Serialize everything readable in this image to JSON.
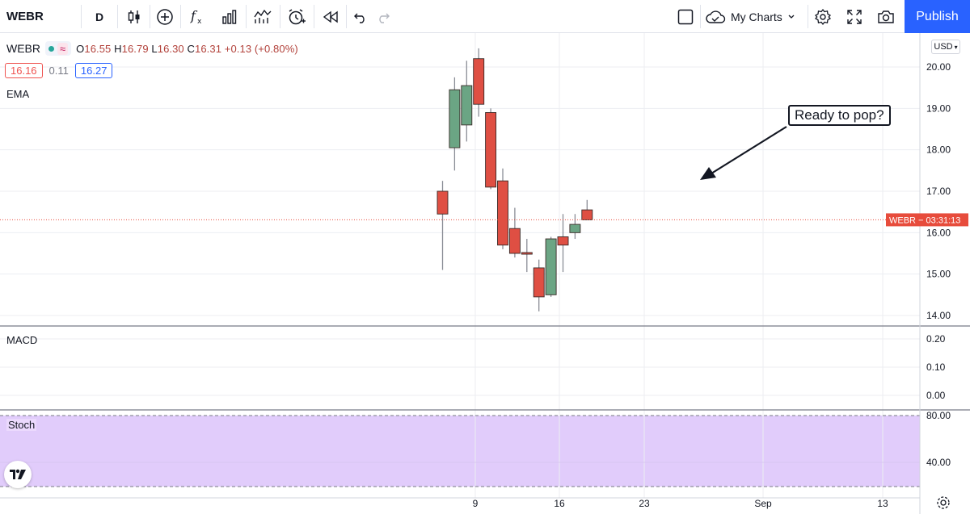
{
  "toolbar": {
    "symbol": "WEBR",
    "interval": "D",
    "icons": [
      "candles-icon",
      "add-symbol-icon",
      "indicators-icon",
      "compare-icon",
      "templates-icon",
      "alert-icon",
      "replay-icon",
      "undo-icon",
      "redo-icon",
      "layout-icon",
      "cloud-icon",
      "settings-icon",
      "fullscreen-icon",
      "camera-icon"
    ],
    "my_charts": "My Charts",
    "publish": "Publish",
    "publish_color": "#2962ff"
  },
  "legend": {
    "symbol": "WEBR",
    "open_key": "O",
    "open": "16.55",
    "high_key": "H",
    "high": "16.79",
    "low_key": "L",
    "low": "16.30",
    "close_key": "C",
    "close": "16.31",
    "change": "+0.13 (+0.80%)",
    "bid": "16.16",
    "spread": "0.11",
    "ask": "16.27"
  },
  "indicators": {
    "ema": "EMA",
    "macd": "MACD",
    "stoch": "Stoch"
  },
  "currency": "USD",
  "annotation": "Ready to pop?",
  "price_label": {
    "symbol": "WEBR",
    "countdown": "03:31:13",
    "color": "#e74c3c"
  },
  "colors": {
    "up": "#6ba584",
    "down": "#df4f43",
    "stoch_band": "#e1ccfb"
  },
  "chart_data": {
    "type": "candlestick",
    "price_axis_ticks": [
      "20.00",
      "19.00",
      "18.00",
      "17.00",
      "16.00",
      "15.00",
      "14.00"
    ],
    "macd_axis_ticks": [
      "0.20",
      "0.10",
      "0.00"
    ],
    "stoch_axis_ticks": [
      "80.00",
      "40.00"
    ],
    "x_ticks": [
      "9",
      "16",
      "23",
      "Sep",
      "13"
    ],
    "last_price": 16.31,
    "candles": [
      {
        "open": 17.0,
        "high": 17.25,
        "low": 15.1,
        "close": 16.45
      },
      {
        "open": 18.05,
        "high": 19.75,
        "low": 17.5,
        "close": 19.45
      },
      {
        "open": 18.6,
        "high": 20.15,
        "low": 18.2,
        "close": 19.55
      },
      {
        "open": 20.2,
        "high": 20.45,
        "low": 18.8,
        "close": 19.1
      },
      {
        "open": 18.9,
        "high": 19.0,
        "low": 17.05,
        "close": 17.1
      },
      {
        "open": 17.25,
        "high": 17.55,
        "low": 15.6,
        "close": 15.7
      },
      {
        "open": 16.1,
        "high": 16.6,
        "low": 15.4,
        "close": 15.5
      },
      {
        "open": 15.52,
        "high": 15.85,
        "low": 15.05,
        "close": 15.48
      },
      {
        "open": 15.15,
        "high": 15.35,
        "low": 14.1,
        "close": 14.45
      },
      {
        "open": 14.5,
        "high": 15.9,
        "low": 14.45,
        "close": 15.85
      },
      {
        "open": 15.9,
        "high": 16.45,
        "low": 15.05,
        "close": 15.7
      },
      {
        "open": 16.0,
        "high": 16.45,
        "low": 15.85,
        "close": 16.2
      },
      {
        "open": 16.55,
        "high": 16.79,
        "low": 16.3,
        "close": 16.31
      }
    ]
  }
}
